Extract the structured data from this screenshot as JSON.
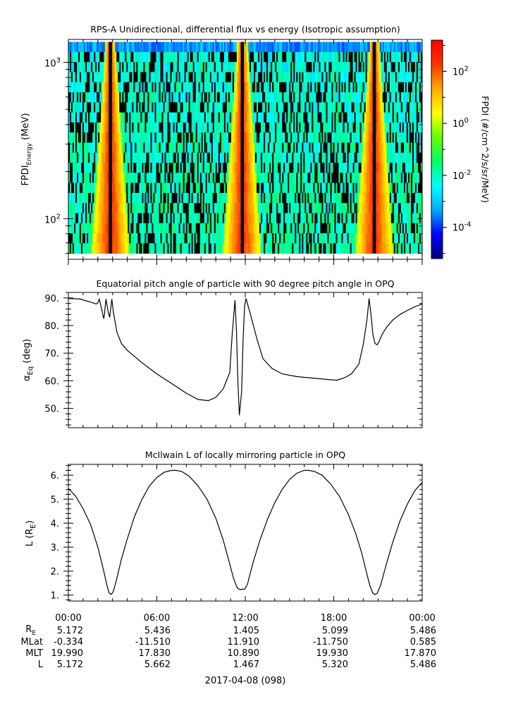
{
  "chart_data": [
    {
      "type": "heatmap",
      "title": "RPS-A Unidirectional, differential flux vs energy (Isotropic assumption)",
      "ylabel_main": "FPDI",
      "ylabel_sub": "Energy",
      "ylabel_unit": "(MeV)",
      "yscale": "log",
      "ylim": [
        55,
        1400
      ],
      "yticks": [
        {
          "value": 100,
          "base": "10",
          "exp": "2"
        },
        {
          "value": 1000,
          "base": "10",
          "exp": "3"
        }
      ],
      "energy_bins": 21,
      "time_range_hours": [
        0,
        24
      ],
      "peak_flux_times_hours": [
        2.85,
        11.8,
        20.75
      ],
      "data_gap_times_hours": [
        2.85,
        11.8,
        20.75
      ],
      "colorbar": {
        "label": "FPDI (#/cm^2/s/sr/MeV)",
        "scale": "log",
        "range_exp": [
          -5.2,
          3.2
        ],
        "ticks": [
          {
            "value_exp": 2,
            "base": "10",
            "exp": "2"
          },
          {
            "value_exp": 0,
            "base": "10",
            "exp": "0"
          },
          {
            "value_exp": -2,
            "base": "10",
            "exp": "-2"
          },
          {
            "value_exp": -4,
            "base": "10",
            "exp": "-4"
          }
        ],
        "colors": [
          "#00007a",
          "#0000ff",
          "#00aaff",
          "#00ffff",
          "#00ff66",
          "#66ff00",
          "#ffff00",
          "#ffaa00",
          "#ff3300",
          "#ff0000"
        ]
      }
    },
    {
      "type": "line",
      "title": "Equatorial pitch angle of particle with 90 degree pitch angle in OPQ",
      "ylabel_main": "α",
      "ylabel_sub": "Eq",
      "ylabel_unit": "(deg)",
      "ylim": [
        43,
        92
      ],
      "yticks": [
        50,
        60,
        70,
        80,
        90
      ],
      "ytick_labels": [
        "50.",
        "60.",
        "70.",
        "80.",
        "90."
      ],
      "series": [
        {
          "name": "alpha_eq",
          "x_hours": [
            0,
            0.8,
            1.5,
            1.9,
            2.0,
            2.1,
            2.25,
            2.4,
            2.45,
            2.55,
            2.7,
            2.8,
            2.95,
            3.05,
            3.3,
            3.6,
            4.0,
            5.0,
            6.0,
            7.0,
            8.0,
            8.8,
            9.5,
            10.0,
            10.5,
            10.95,
            11.1,
            11.3,
            11.4,
            11.5,
            11.6,
            11.75,
            11.85,
            11.95,
            12.05,
            12.3,
            12.8,
            13.2,
            13.8,
            14.5,
            15.5,
            16.5,
            17.5,
            18.2,
            18.7,
            19.2,
            19.7,
            20.0,
            20.25,
            20.4,
            20.55,
            20.65,
            20.8,
            20.95,
            21.1,
            21.3,
            21.6,
            22.0,
            22.5,
            23.0,
            23.5,
            24.0
          ],
          "y_deg": [
            89.8,
            89.6,
            88.5,
            87.8,
            88.2,
            89.6,
            86.0,
            82.5,
            84.0,
            89.6,
            85.0,
            83.0,
            89.6,
            85.0,
            77.5,
            73.5,
            71.0,
            66.5,
            62.5,
            59.0,
            55.5,
            53.2,
            52.8,
            54.0,
            57.0,
            63.0,
            76.0,
            89.2,
            78.0,
            60.0,
            47.5,
            56.0,
            75.0,
            87.0,
            89.8,
            85.0,
            75.0,
            68.0,
            64.5,
            62.5,
            61.5,
            61.0,
            60.5,
            60.2,
            61.0,
            62.5,
            66.0,
            73.0,
            82.0,
            89.8,
            83.0,
            77.0,
            73.5,
            73.0,
            74.5,
            77.0,
            79.5,
            82.0,
            84.0,
            85.5,
            86.8,
            87.8
          ]
        }
      ]
    },
    {
      "type": "line",
      "title": "McIlwain L of locally mirroring particle in OPQ",
      "ylabel_main": "L (R",
      "ylabel_sub": "E",
      "ylabel_unit": ")",
      "ylim": [
        0.75,
        6.45
      ],
      "yticks": [
        1,
        2,
        3,
        4,
        5,
        6
      ],
      "ytick_labels": [
        "1.",
        "2.",
        "3.",
        "4.",
        "5.",
        "6."
      ],
      "series": [
        {
          "name": "L_shell",
          "x_hours": [
            0,
            0.5,
            1.0,
            1.5,
            2.0,
            2.4,
            2.6,
            2.75,
            2.9,
            3.05,
            3.25,
            3.6,
            4.0,
            4.5,
            5.0,
            5.5,
            6.0,
            6.5,
            7.0,
            7.3,
            7.7,
            8.2,
            8.8,
            9.4,
            10.0,
            10.5,
            10.9,
            11.2,
            11.45,
            11.65,
            11.8,
            11.95,
            12.15,
            12.5,
            13.0,
            13.5,
            14.0,
            14.5,
            15.0,
            15.5,
            16.0,
            16.3,
            16.7,
            17.2,
            17.8,
            18.4,
            19.0,
            19.5,
            19.9,
            20.2,
            20.45,
            20.65,
            20.8,
            20.95,
            21.2,
            21.6,
            22.0,
            22.5,
            23.0,
            23.5,
            24.0
          ],
          "y_re": [
            5.45,
            5.12,
            4.6,
            3.95,
            3.0,
            2.0,
            1.45,
            1.1,
            1.02,
            1.15,
            1.6,
            2.5,
            3.35,
            4.3,
            5.0,
            5.55,
            5.9,
            6.12,
            6.2,
            6.2,
            6.15,
            5.95,
            5.55,
            5.0,
            4.2,
            3.3,
            2.4,
            1.7,
            1.3,
            1.22,
            1.25,
            1.24,
            1.45,
            2.3,
            3.3,
            4.15,
            4.85,
            5.4,
            5.82,
            6.08,
            6.2,
            6.2,
            6.15,
            6.0,
            5.62,
            5.1,
            4.35,
            3.55,
            2.75,
            2.0,
            1.4,
            1.08,
            1.02,
            1.07,
            1.45,
            2.35,
            3.2,
            4.1,
            4.8,
            5.35,
            5.7
          ]
        }
      ]
    }
  ],
  "xaxis": {
    "tick_labels": [
      "00:00",
      "06:00",
      "12:00",
      "18:00",
      "00:00"
    ],
    "date_label": "2017-04-08 (098)"
  },
  "ephemeris": {
    "rows": [
      {
        "label": "R",
        "label_sub": "E",
        "values": [
          "5.172",
          "5.436",
          "1.405",
          "5.099",
          "5.486"
        ]
      },
      {
        "label": "MLat",
        "label_sub": "",
        "values": [
          "-0.334",
          "-11.510",
          "11.910",
          "-11.750",
          "0.585"
        ]
      },
      {
        "label": "MLT",
        "label_sub": "",
        "values": [
          "19.990",
          "17.830",
          "10.890",
          "19.930",
          "17.870"
        ]
      },
      {
        "label": "L",
        "label_sub": "",
        "values": [
          "5.172",
          "5.662",
          "1.467",
          "5.320",
          "5.486"
        ]
      }
    ]
  }
}
